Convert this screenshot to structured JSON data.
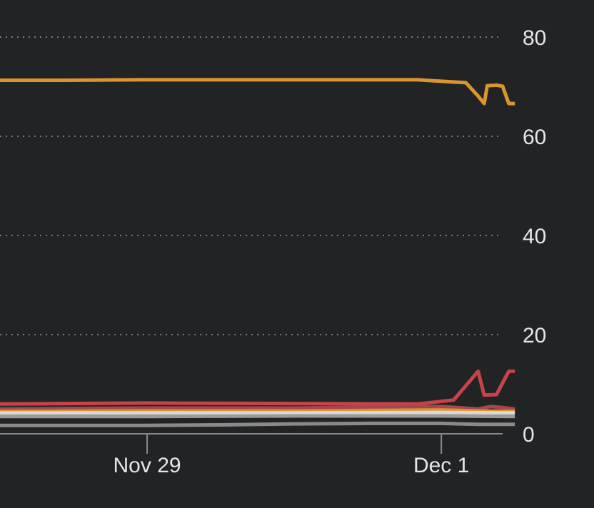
{
  "chart_data": {
    "type": "line",
    "x_domain": [
      "2023-11-28",
      "2023-12-01T10:00"
    ],
    "ylim": [
      0,
      80
    ],
    "y_ticks": [
      {
        "value": 0,
        "label": "0"
      },
      {
        "value": 20,
        "label": "20"
      },
      {
        "value": 40,
        "label": "40"
      },
      {
        "value": 60,
        "label": "60"
      },
      {
        "value": 80,
        "label": "80"
      }
    ],
    "x_ticks": [
      {
        "date": "2023-11-29",
        "label": "Nov 29"
      },
      {
        "date": "2023-12-01",
        "label": "Dec 1"
      }
    ],
    "grid": true,
    "legend": "none",
    "series": [
      {
        "color": "#d9962e",
        "points": [
          [
            "2023-11-28T00:00",
            71.3
          ],
          [
            "2023-11-28T10:00",
            71.3
          ],
          [
            "2023-11-29T00:00",
            71.4
          ],
          [
            "2023-11-30T00:00",
            71.4
          ],
          [
            "2023-11-30T20:00",
            71.4
          ],
          [
            "2023-12-01T00:00",
            71.1
          ],
          [
            "2023-12-01T04:00",
            70.8
          ],
          [
            "2023-12-01T06:00",
            68.1
          ],
          [
            "2023-12-01T07:00",
            66.6
          ],
          [
            "2023-12-01T07:30",
            70.2
          ],
          [
            "2023-12-01T09:00",
            70.3
          ],
          [
            "2023-12-01T10:00",
            70.1
          ],
          [
            "2023-12-01T11:00",
            66.6
          ],
          [
            "2023-12-01T12:00",
            66.6
          ]
        ]
      },
      {
        "color": "#c7434a",
        "points": [
          [
            "2023-11-28T00:00",
            6.0
          ],
          [
            "2023-11-29T00:00",
            6.2
          ],
          [
            "2023-11-30T00:00",
            6.1
          ],
          [
            "2023-11-30T20:00",
            6.0
          ],
          [
            "2023-12-01T02:00",
            6.8
          ],
          [
            "2023-12-01T04:00",
            9.7
          ],
          [
            "2023-12-01T06:00",
            12.6
          ],
          [
            "2023-12-01T07:00",
            7.8
          ],
          [
            "2023-12-01T09:00",
            7.9
          ],
          [
            "2023-12-01T11:00",
            12.6
          ],
          [
            "2023-12-01T12:00",
            12.6
          ]
        ]
      },
      {
        "color": "#a8464d",
        "points": [
          [
            "2023-11-28T00:00",
            5.0
          ],
          [
            "2023-11-29T00:00",
            5.2
          ],
          [
            "2023-11-30T00:00",
            5.2
          ],
          [
            "2023-12-01T00:00",
            5.5
          ],
          [
            "2023-12-01T06:00",
            5.0
          ],
          [
            "2023-12-01T08:00",
            5.5
          ],
          [
            "2023-12-01T10:00",
            5.3
          ],
          [
            "2023-12-01T12:00",
            5.0
          ]
        ]
      },
      {
        "color": "#d9962e",
        "points": [
          [
            "2023-11-28T00:00",
            4.5
          ],
          [
            "2023-11-29T00:00",
            4.6
          ],
          [
            "2023-11-30T00:00",
            4.6
          ],
          [
            "2023-12-01T00:00",
            4.8
          ],
          [
            "2023-12-01T06:00",
            4.6
          ],
          [
            "2023-12-01T12:00",
            4.5
          ]
        ]
      },
      {
        "color": "#d8d8d8",
        "points": [
          [
            "2023-11-28T00:00",
            4.2
          ],
          [
            "2023-11-29T00:00",
            4.2
          ],
          [
            "2023-11-30T00:00",
            4.2
          ],
          [
            "2023-12-01T00:00",
            4.3
          ],
          [
            "2023-12-01T12:00",
            4.2
          ]
        ]
      },
      {
        "color": "#9a9a9a",
        "points": [
          [
            "2023-11-28T00:00",
            3.5
          ],
          [
            "2023-11-29T00:00",
            3.5
          ],
          [
            "2023-11-30T00:00",
            3.6
          ],
          [
            "2023-12-01T00:00",
            3.6
          ],
          [
            "2023-12-01T12:00",
            3.5
          ]
        ]
      },
      {
        "color": "#8a8a8a",
        "points": [
          [
            "2023-11-28T00:00",
            1.7
          ],
          [
            "2023-11-29T00:00",
            1.7
          ],
          [
            "2023-11-29T12:00",
            1.8
          ],
          [
            "2023-11-30T00:00",
            2.0
          ],
          [
            "2023-11-30T12:00",
            2.1
          ],
          [
            "2023-12-01T00:00",
            2.1
          ],
          [
            "2023-12-01T06:00",
            1.9
          ],
          [
            "2023-12-01T12:00",
            1.9
          ]
        ]
      }
    ]
  }
}
